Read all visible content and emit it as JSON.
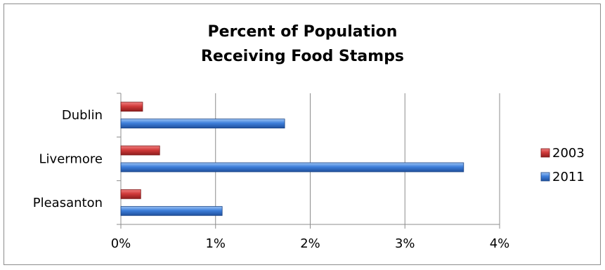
{
  "chart_data": {
    "type": "bar",
    "orientation": "horizontal",
    "title": "Percent of Population Receiving Food Stamps",
    "title_lines": [
      "Percent of Population",
      "Receiving Food Stamps"
    ],
    "categories": [
      "Dublin",
      "Livermore",
      "Pleasanton"
    ],
    "series": [
      {
        "name": "2003",
        "values": [
          0.23,
          0.41,
          0.21
        ],
        "color": "#c0392b"
      },
      {
        "name": "2011",
        "values": [
          1.73,
          3.62,
          1.07
        ],
        "color": "#3a78d8"
      }
    ],
    "x_ticks": [
      "0%",
      "1%",
      "2%",
      "3%",
      "4%"
    ],
    "xlim": [
      0,
      4
    ],
    "unit": "%",
    "grid": true,
    "legend_position": "right"
  }
}
